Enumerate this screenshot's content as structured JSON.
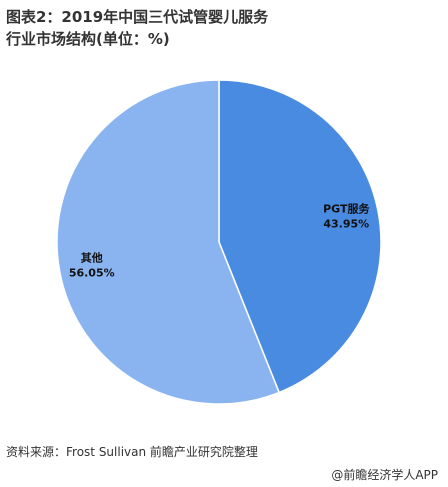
{
  "chart_data": {
    "type": "pie",
    "title": "图表2：2019年中国三代试管婴儿服务行业市场结构(单位：%)",
    "categories": [
      "PGT服务",
      "其他"
    ],
    "values": [
      43.95,
      56.05
    ],
    "value_labels": [
      "43.95%",
      "56.05%"
    ],
    "colors": [
      "#4a8be2",
      "#8ab4ef"
    ],
    "source": "资料来源：Frost Sullivan  前瞻产业研究院整理",
    "credit": "@前瞻经济学人APP"
  }
}
